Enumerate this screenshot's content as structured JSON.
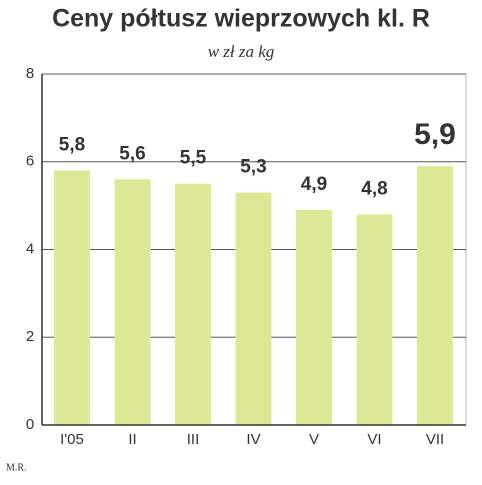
{
  "chart_data": {
    "type": "bar",
    "title": "Ceny półtusz wieprzowych kl. R",
    "subtitle": "w zł za kg",
    "categories": [
      "I'05",
      "II",
      "III",
      "IV",
      "V",
      "VI",
      "VII"
    ],
    "values": [
      5.8,
      5.6,
      5.5,
      5.3,
      4.9,
      4.8,
      5.9
    ],
    "value_labels": [
      "5,8",
      "5,6",
      "5,5",
      "5,3",
      "4,9",
      "4,8",
      "5,9"
    ],
    "value_label_colors": [
      "#333333",
      "#333333",
      "#333333",
      "#333333",
      "#333333",
      "#333333",
      "#d2334f"
    ],
    "color": "#dde897",
    "ylim": [
      0,
      8
    ],
    "yticks": [
      0,
      2,
      4,
      6,
      8
    ],
    "grid": true,
    "credit": "M.R."
  }
}
